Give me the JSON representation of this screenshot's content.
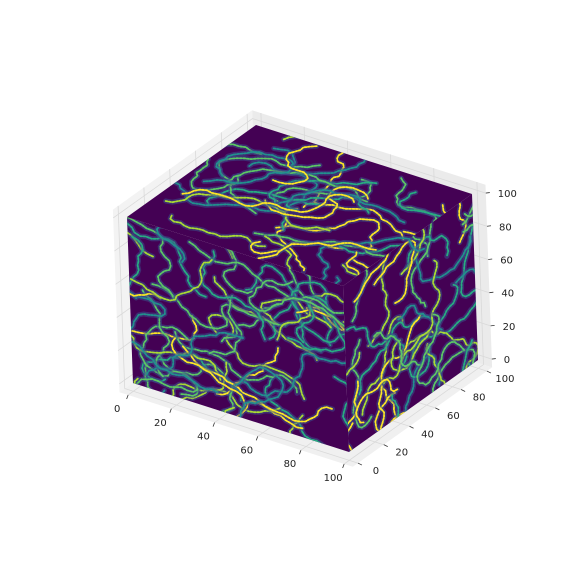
{
  "chart_data": {
    "type": "3d-volume",
    "title": "",
    "colormap": "viridis",
    "colors": {
      "background": "#ffffff",
      "pane_left": "#f3f3f3",
      "pane_back": "#ebebeb",
      "pane_floor": "#f0f0f0",
      "grid": "#d9d9d9",
      "cube_base": "#440154"
    },
    "x_axis": {
      "label": "",
      "ticks": [
        0,
        20,
        40,
        60,
        80,
        100
      ],
      "range": [
        -4,
        104
      ]
    },
    "y_axis": {
      "label": "",
      "ticks": [
        0,
        20,
        40,
        60,
        80,
        100
      ],
      "range": [
        -4,
        104
      ]
    },
    "z_axis": {
      "label": "",
      "ticks": [
        0,
        20,
        40,
        60,
        80,
        100
      ],
      "range": [
        -5,
        105
      ]
    },
    "volume": {
      "extent": {
        "x": [
          0,
          100
        ],
        "y": [
          0,
          100
        ],
        "z": [
          0,
          100
        ]
      },
      "description_values": "scalar field rendered as filament-like bright curves on dark background",
      "value_range": [
        0,
        1
      ]
    }
  }
}
